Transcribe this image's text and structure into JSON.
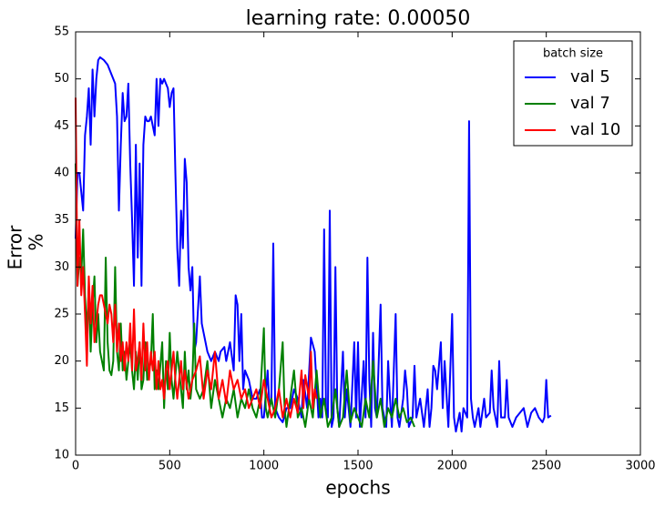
{
  "chart_data": {
    "type": "line",
    "title": "learning rate: 0.00050",
    "xlabel": "epochs",
    "ylabel": [
      "Error",
      "%"
    ],
    "xlim": [
      0,
      3000
    ],
    "xticks": [
      0,
      500,
      1000,
      1500,
      2000,
      2500,
      3000
    ],
    "ylim": [
      10,
      55
    ],
    "yticks": [
      10,
      15,
      20,
      25,
      30,
      35,
      40,
      45,
      50,
      55
    ],
    "legend_title": "batch size",
    "legend_loc": "upper right",
    "series": [
      {
        "name": "val 5",
        "color": "#0000ff",
        "x": [
          0,
          10,
          20,
          30,
          40,
          50,
          60,
          70,
          80,
          90,
          100,
          110,
          120,
          130,
          150,
          170,
          190,
          200,
          210,
          220,
          230,
          240,
          250,
          260,
          270,
          280,
          290,
          300,
          310,
          320,
          330,
          340,
          350,
          360,
          370,
          380,
          390,
          400,
          410,
          420,
          430,
          440,
          450,
          460,
          470,
          480,
          490,
          500,
          510,
          520,
          530,
          540,
          550,
          560,
          570,
          580,
          590,
          600,
          610,
          620,
          630,
          640,
          660,
          670,
          680,
          690,
          700,
          720,
          740,
          760,
          770,
          790,
          800,
          820,
          840,
          850,
          860,
          870,
          880,
          890,
          900,
          920,
          940,
          960,
          980,
          990,
          1000,
          1020,
          1030,
          1040,
          1050,
          1060,
          1080,
          1100,
          1120,
          1140,
          1160,
          1180,
          1200,
          1210,
          1230,
          1250,
          1270,
          1290,
          1300,
          1310,
          1320,
          1330,
          1340,
          1350,
          1360,
          1370,
          1380,
          1390,
          1400,
          1420,
          1430,
          1440,
          1460,
          1480,
          1490,
          1500,
          1510,
          1530,
          1540,
          1550,
          1560,
          1570,
          1580,
          1590,
          1600,
          1620,
          1630,
          1650,
          1660,
          1670,
          1680,
          1700,
          1710,
          1720,
          1740,
          1750,
          1760,
          1770,
          1790,
          1800,
          1810,
          1830,
          1850,
          1870,
          1880,
          1890,
          1900,
          1910,
          1920,
          1940,
          1950,
          1960,
          1980,
          2000,
          2010,
          2020,
          2040,
          2050,
          2060,
          2080,
          2090,
          2100,
          2110,
          2120,
          2140,
          2150,
          2170,
          2180,
          2200,
          2210,
          2220,
          2230,
          2240,
          2250,
          2260,
          2280,
          2290,
          2300,
          2320,
          2340,
          2360,
          2380,
          2400,
          2420,
          2440,
          2460,
          2480,
          2490,
          2500,
          2510,
          2525
        ],
        "values": [
          33,
          40,
          40,
          38,
          36,
          44,
          46,
          49,
          43,
          51,
          46,
          50,
          52,
          52.3,
          52,
          51.5,
          50.5,
          50,
          49.5,
          46,
          36,
          43,
          48.5,
          45.5,
          46,
          49.5,
          41,
          35,
          28,
          43,
          31,
          41,
          28,
          43,
          46,
          45.5,
          45.5,
          46,
          45,
          44,
          50,
          45,
          50,
          49.5,
          50,
          49.5,
          49,
          47,
          48.5,
          49,
          40,
          32,
          28,
          36,
          32,
          41.5,
          39,
          30,
          27.5,
          30,
          21,
          22,
          29,
          24,
          23,
          22,
          21,
          20,
          21,
          20,
          21,
          21.5,
          20,
          22,
          19,
          27,
          26,
          20,
          25,
          17,
          19,
          18,
          16,
          16,
          17,
          14,
          14,
          19,
          15,
          16,
          32.5,
          15,
          14,
          13.5,
          15,
          15,
          17,
          16,
          14,
          18,
          15,
          22.5,
          21,
          14,
          16,
          14,
          34,
          15,
          14,
          36,
          13,
          14,
          30,
          15,
          13,
          21,
          14,
          17,
          13,
          22,
          14,
          22,
          13,
          20,
          14,
          31,
          18,
          13,
          23,
          15,
          14,
          26,
          15,
          13,
          20,
          16,
          13,
          25,
          14,
          13,
          16,
          19,
          17,
          13,
          14,
          19.5,
          14,
          16,
          13,
          17,
          13,
          15,
          19.5,
          19,
          17,
          22,
          15,
          20,
          13,
          25,
          14,
          12.5,
          14.5,
          12.5,
          15,
          14,
          45.5,
          16,
          14,
          13,
          15,
          13,
          16,
          14,
          14.5,
          19,
          15,
          14,
          13,
          20,
          14,
          14,
          18,
          14,
          13,
          14,
          14.5,
          15,
          13,
          14.5,
          15,
          14,
          13.5,
          14,
          18,
          14,
          14.2
        ]
      },
      {
        "name": "val 7",
        "color": "#008000",
        "x": [
          0,
          10,
          20,
          30,
          40,
          50,
          60,
          70,
          80,
          90,
          100,
          110,
          120,
          130,
          140,
          150,
          160,
          170,
          180,
          190,
          200,
          210,
          220,
          230,
          240,
          250,
          260,
          270,
          280,
          290,
          300,
          310,
          320,
          330,
          340,
          350,
          360,
          370,
          380,
          390,
          400,
          410,
          420,
          430,
          440,
          450,
          460,
          470,
          480,
          490,
          500,
          510,
          520,
          540,
          560,
          570,
          580,
          590,
          600,
          610,
          620,
          630,
          640,
          660,
          680,
          700,
          720,
          740,
          760,
          780,
          800,
          820,
          840,
          860,
          880,
          900,
          920,
          940,
          960,
          980,
          1000,
          1010,
          1020,
          1040,
          1060,
          1080,
          1100,
          1110,
          1120,
          1140,
          1160,
          1180,
          1200,
          1220,
          1240,
          1260,
          1280,
          1300,
          1320,
          1340,
          1360,
          1380,
          1400,
          1420,
          1440,
          1460,
          1480,
          1500,
          1520,
          1540,
          1560,
          1580,
          1600,
          1620,
          1640,
          1660,
          1680,
          1700,
          1720,
          1740,
          1760,
          1780,
          1800
        ],
        "values": [
          41,
          28,
          31,
          29,
          34,
          27,
          23,
          28,
          21,
          26,
          29,
          22,
          25,
          21,
          20,
          19,
          31,
          22,
          19,
          18.5,
          20,
          30,
          21,
          19,
          24,
          19,
          21,
          18,
          20,
          22,
          19,
          17,
          21,
          18,
          22,
          17,
          18,
          22,
          18,
          19,
          20,
          25,
          17,
          19,
          17,
          19.5,
          22,
          15,
          20,
          17,
          23,
          18,
          16,
          21,
          17,
          15,
          21,
          17,
          19,
          16,
          18,
          24,
          17,
          16,
          17,
          20,
          15,
          18,
          16,
          14,
          16,
          15,
          17,
          14,
          16,
          15,
          17,
          15,
          14,
          16,
          23.5,
          15,
          14,
          16,
          14,
          17,
          22,
          15,
          13,
          16,
          19,
          14,
          15,
          13,
          16,
          14,
          19,
          14,
          16,
          13,
          14,
          17,
          13,
          14,
          19,
          13.5,
          15,
          14,
          13,
          16,
          14,
          20,
          14,
          16,
          13,
          15,
          14,
          16,
          14,
          15,
          13.5,
          14,
          13
        ]
      },
      {
        "name": "val 10",
        "color": "#ff0000",
        "x": [
          0,
          10,
          20,
          30,
          40,
          50,
          60,
          70,
          80,
          90,
          100,
          110,
          120,
          130,
          140,
          150,
          160,
          170,
          180,
          190,
          200,
          210,
          220,
          230,
          240,
          250,
          260,
          270,
          280,
          290,
          300,
          310,
          320,
          330,
          340,
          350,
          360,
          370,
          380,
          390,
          400,
          410,
          420,
          430,
          440,
          450,
          460,
          470,
          480,
          490,
          500,
          520,
          530,
          540,
          560,
          570,
          580,
          600,
          620,
          640,
          660,
          680,
          700,
          720,
          740,
          760,
          780,
          800,
          820,
          840,
          860,
          880,
          900,
          920,
          940,
          960,
          980,
          1000,
          1020,
          1040,
          1060,
          1080,
          1100,
          1120,
          1140,
          1160,
          1180,
          1200,
          1210,
          1220,
          1240,
          1250,
          1260,
          1270,
          1280
        ],
        "values": [
          48,
          28,
          35,
          27,
          30,
          25,
          19.5,
          29,
          24,
          28,
          22,
          24,
          26,
          27,
          27,
          26,
          25,
          24,
          26,
          25,
          22,
          26,
          21,
          24,
          20,
          22,
          19,
          22,
          20,
          24,
          19,
          25.5,
          19,
          20,
          22,
          18,
          24,
          19,
          22,
          18,
          21,
          19,
          21,
          17,
          20,
          17,
          18,
          16,
          19,
          20,
          17,
          21,
          18,
          16,
          20,
          17,
          19,
          16,
          18,
          19,
          20.5,
          16,
          19,
          17,
          21,
          16,
          18,
          15.5,
          19,
          17,
          18,
          16,
          17,
          15,
          16,
          17,
          15,
          18,
          16,
          14,
          15,
          17,
          14,
          16,
          14,
          16,
          14.5,
          19,
          15,
          18.5,
          16,
          21,
          15,
          17,
          16
        ]
      }
    ]
  }
}
